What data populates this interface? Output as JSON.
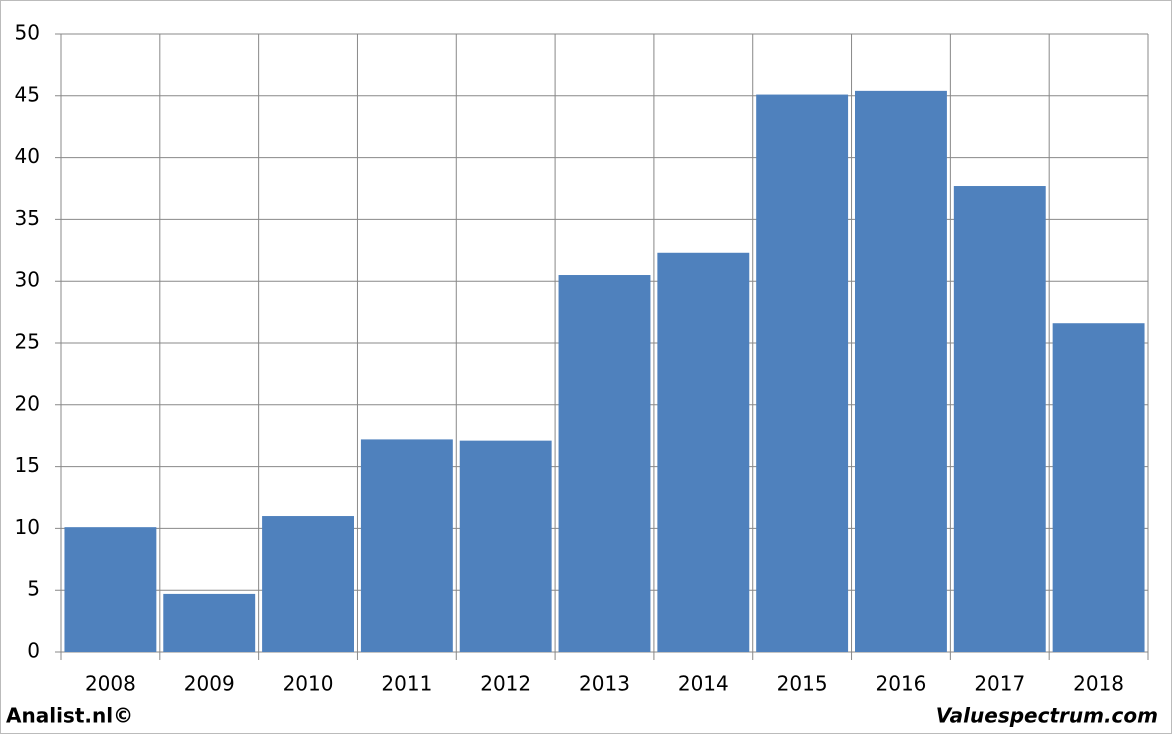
{
  "chart_data": {
    "type": "bar",
    "categories": [
      "2008",
      "2009",
      "2010",
      "2011",
      "2012",
      "2013",
      "2014",
      "2015",
      "2016",
      "2017",
      "2018"
    ],
    "values": [
      10.1,
      4.7,
      11.0,
      17.2,
      17.1,
      30.5,
      32.3,
      45.1,
      45.4,
      37.7,
      26.6
    ],
    "color": "#4f81bd",
    "ylim": [
      0,
      50
    ],
    "yticks": [
      0,
      5,
      10,
      15,
      20,
      25,
      30,
      35,
      40,
      45,
      50
    ],
    "grid": true,
    "credits": [
      "Analist.nl©",
      "Valuespectrum.com"
    ]
  }
}
